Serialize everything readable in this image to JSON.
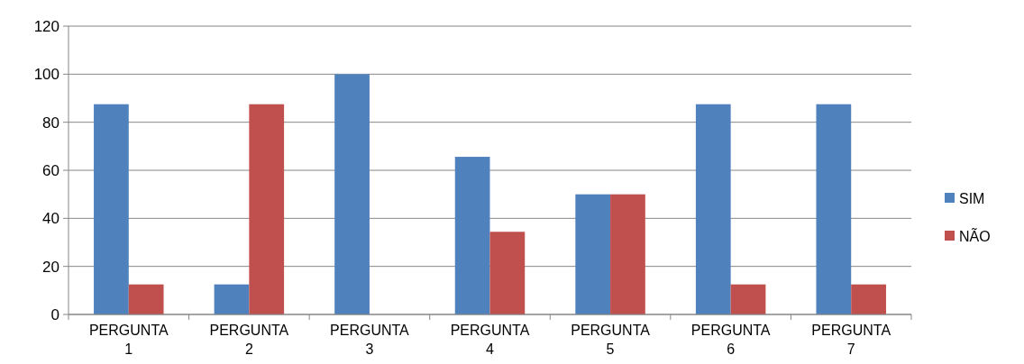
{
  "chart_data": {
    "type": "bar",
    "categories": [
      "PERGUNTA 1",
      "PERGUNTA 2",
      "PERGUNTA 3",
      "PERGUNTA 4",
      "PERGUNTA 5",
      "PERGUNTA 6",
      "PERGUNTA 7"
    ],
    "series": [
      {
        "name": "SIM",
        "color": "#4f81bd",
        "values": [
          87.5,
          12.5,
          100,
          65.6,
          50,
          87.5,
          87.5
        ]
      },
      {
        "name": "NÃO",
        "color": "#c0504d",
        "values": [
          12.5,
          87.5,
          0,
          34.4,
          50,
          12.5,
          12.5
        ]
      }
    ],
    "ylim": [
      0,
      120
    ],
    "yticks": [
      0,
      20,
      40,
      60,
      80,
      100,
      120
    ],
    "grid": "y",
    "legend": "right"
  }
}
